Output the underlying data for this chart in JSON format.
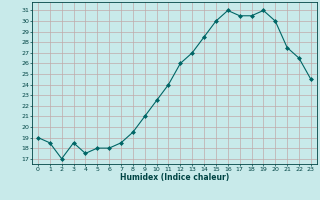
{
  "x": [
    0,
    1,
    2,
    3,
    4,
    5,
    6,
    7,
    8,
    9,
    10,
    11,
    12,
    13,
    14,
    15,
    16,
    17,
    18,
    19,
    20,
    21,
    22,
    23
  ],
  "y": [
    19,
    18.5,
    17,
    18.5,
    17.5,
    18,
    18,
    18.5,
    19.5,
    21,
    22.5,
    24,
    26,
    27,
    28.5,
    30,
    31,
    30.5,
    30.5,
    31,
    30,
    27.5,
    26.5,
    24.5
  ],
  "line_color": "#006666",
  "marker": "D",
  "marker_size": 2,
  "bg_color": "#c8eaea",
  "grid_color": "#c0aaaa",
  "tick_color": "#004444",
  "xlabel": "Humidex (Indice chaleur)",
  "ylabel_ticks": [
    17,
    18,
    19,
    20,
    21,
    22,
    23,
    24,
    25,
    26,
    27,
    28,
    29,
    30,
    31
  ],
  "ylim": [
    16.5,
    31.8
  ],
  "xlim": [
    -0.5,
    23.5
  ],
  "figsize": [
    3.2,
    2.0
  ],
  "dpi": 100
}
